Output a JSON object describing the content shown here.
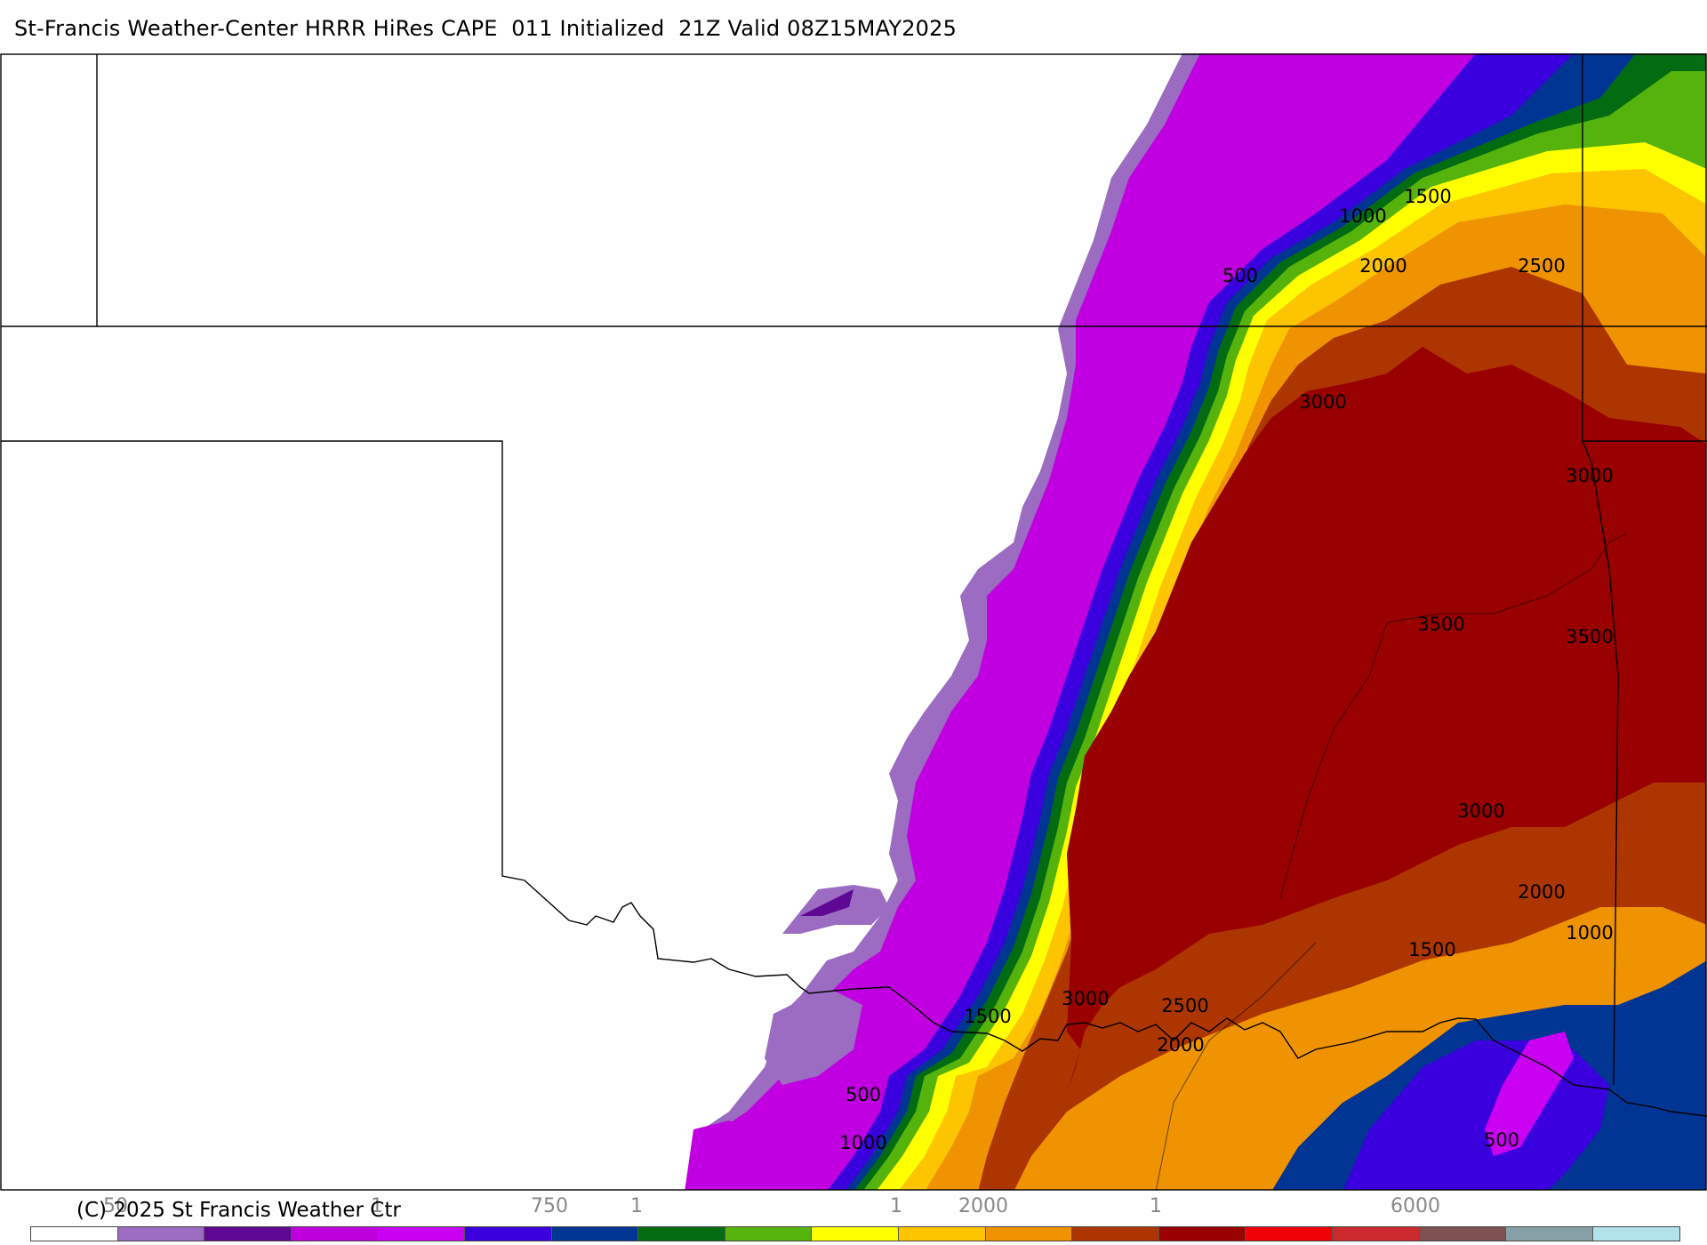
{
  "title": "St-Francis Weather-Center HRRR HiRes CAPE  011 Initialized  21Z Valid 08Z15MAY2025",
  "copyright": "(C) 2025 St Francis Weather Ctr",
  "legend": {
    "colors": [
      "#ffffff",
      "#9b6cc2",
      "#5e0893",
      "#bd00dc",
      "#c900f2",
      "#3a00dd",
      "#013594",
      "#036b12",
      "#55b30b",
      "#ffff00",
      "#fdc400",
      "#ef9300",
      "#ad3600",
      "#990000",
      "#ef0004",
      "#cd2a2d",
      "#7f5252",
      "#86a0a7",
      "#b3e3ea"
    ],
    "tick_labels": [
      "50",
      "1",
      "750",
      "1",
      "1",
      "2000",
      "1",
      "6000"
    ]
  },
  "contour_labels": [
    "500",
    "1000",
    "1500",
    "2000",
    "2500",
    "3000",
    "3000",
    "3500",
    "3500",
    "3000",
    "2000",
    "1000",
    "1500",
    "3000",
    "2500",
    "1500",
    "2000",
    "500",
    "1000",
    "500"
  ],
  "map_colors": {
    "background": "#ffffff",
    "border": "#000000"
  }
}
